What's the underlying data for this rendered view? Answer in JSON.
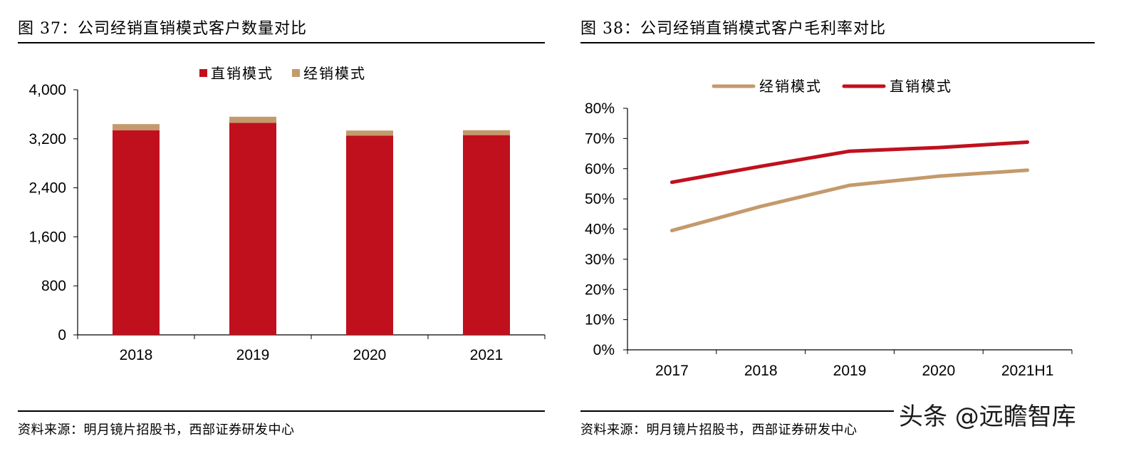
{
  "panels": {
    "left": {
      "title": "图 37：公司经销直销模式客户数量对比",
      "source": "资料来源：明月镜片招股书，西部证券研发中心"
    },
    "right": {
      "title": "图 38：公司经销直销模式客户毛利率对比",
      "source": "资料来源：明月镜片招股书，西部证券研发中心"
    }
  },
  "watermark": "头条 @远瞻智库",
  "colors": {
    "direct": "#c0101e",
    "distributor": "#c49a6c"
  },
  "chart_data": [
    {
      "type": "bar",
      "stacked": true,
      "categories": [
        "2018",
        "2019",
        "2020",
        "2021"
      ],
      "series": [
        {
          "name": "直销模式",
          "values": [
            3340,
            3460,
            3250,
            3260
          ]
        },
        {
          "name": "经销模式",
          "values": [
            100,
            100,
            85,
            80
          ]
        }
      ],
      "ylim": [
        0,
        4000
      ],
      "yticks": [
        "0",
        "800",
        "1,600",
        "2,400",
        "3,200",
        "4,000"
      ],
      "ytick_values": [
        0,
        800,
        1600,
        2400,
        3200,
        4000
      ],
      "legend": "top",
      "grid": false
    },
    {
      "type": "line",
      "categories": [
        "2017",
        "2018",
        "2019",
        "2020",
        "2021H1"
      ],
      "series": [
        {
          "name": "经销模式",
          "values": [
            39.5,
            47.5,
            54.5,
            57.5,
            59.5
          ]
        },
        {
          "name": "直销模式",
          "values": [
            55.5,
            60.8,
            65.8,
            67.0,
            68.8
          ]
        }
      ],
      "ylim": [
        0,
        80
      ],
      "yticks": [
        "0%",
        "10%",
        "20%",
        "30%",
        "40%",
        "50%",
        "60%",
        "70%",
        "80%"
      ],
      "ytick_values": [
        0,
        10,
        20,
        30,
        40,
        50,
        60,
        70,
        80
      ],
      "legend": "top",
      "grid": false
    }
  ]
}
